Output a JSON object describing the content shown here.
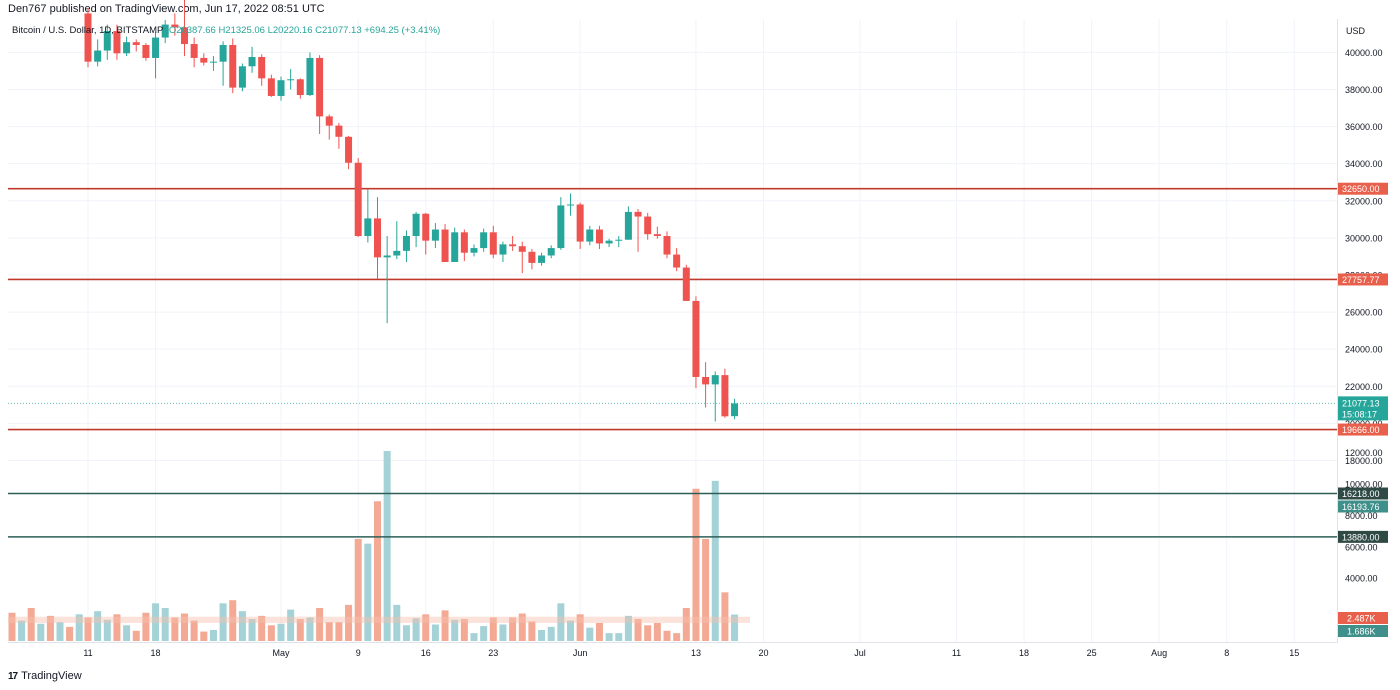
{
  "header": {
    "published_text": "Den767 published on TradingView.com, Jun 17, 2022 08:51 UTC"
  },
  "legend": {
    "symbol": "Bitcoin / U.S. Dollar, 1D, BITSTAMP",
    "ohlc": "O20387.66  H21325.06  L20220.16  C21077.13  +694.25 (+3.41%)"
  },
  "footer": {
    "logo_text": "17",
    "brand": "TradingView"
  },
  "colors": {
    "up": "#26a69a",
    "down": "#ef5350",
    "level_red": "#c0392b",
    "level_green": "#2e5e57",
    "grid": "#f0f3fa",
    "vol_up": "#9fd0d4",
    "vol_down": "#f2a48e"
  },
  "chart_data": {
    "type": "candlestick",
    "currency": "USD",
    "ylim": [
      17000,
      41800
    ],
    "y_ticks": [
      18000,
      20000,
      22000,
      24000,
      26000,
      28000,
      30000,
      32000,
      34000,
      36000,
      38000,
      40000
    ],
    "x_ticks": [
      "11",
      "18",
      "May",
      "9",
      "16",
      "23",
      "Jun",
      "13",
      "20",
      "Jul",
      "11",
      "18",
      "25",
      "Aug",
      "8",
      "15"
    ],
    "candles": [
      {
        "date": "2022-04-11",
        "o": 42100,
        "h": 42400,
        "l": 39200,
        "c": 39500
      },
      {
        "date": "2022-04-12",
        "o": 39500,
        "h": 40700,
        "l": 39250,
        "c": 40100
      },
      {
        "date": "2022-04-13",
        "o": 40100,
        "h": 41500,
        "l": 39600,
        "c": 41150
      },
      {
        "date": "2022-04-14",
        "o": 41150,
        "h": 41500,
        "l": 39600,
        "c": 39950
      },
      {
        "date": "2022-04-15",
        "o": 39950,
        "h": 40850,
        "l": 39800,
        "c": 40550
      },
      {
        "date": "2022-04-16",
        "o": 40550,
        "h": 40700,
        "l": 40050,
        "c": 40400
      },
      {
        "date": "2022-04-17",
        "o": 40400,
        "h": 40500,
        "l": 39550,
        "c": 39700
      },
      {
        "date": "2022-04-18",
        "o": 39700,
        "h": 41100,
        "l": 38600,
        "c": 40800
      },
      {
        "date": "2022-04-19",
        "o": 40800,
        "h": 41750,
        "l": 40500,
        "c": 41500
      },
      {
        "date": "2022-04-20",
        "o": 41500,
        "h": 42100,
        "l": 40900,
        "c": 41350
      },
      {
        "date": "2022-04-21",
        "o": 41350,
        "h": 42900,
        "l": 39800,
        "c": 40450
      },
      {
        "date": "2022-04-22",
        "o": 40450,
        "h": 40800,
        "l": 39200,
        "c": 39700
      },
      {
        "date": "2022-04-23",
        "o": 39700,
        "h": 39950,
        "l": 39300,
        "c": 39450
      },
      {
        "date": "2022-04-24",
        "o": 39450,
        "h": 39800,
        "l": 39000,
        "c": 39500
      },
      {
        "date": "2022-04-25",
        "o": 39500,
        "h": 40600,
        "l": 38200,
        "c": 40400
      },
      {
        "date": "2022-04-26",
        "o": 40400,
        "h": 40750,
        "l": 37800,
        "c": 38100
      },
      {
        "date": "2022-04-27",
        "o": 38100,
        "h": 39400,
        "l": 37900,
        "c": 39250
      },
      {
        "date": "2022-04-28",
        "o": 39250,
        "h": 40300,
        "l": 38900,
        "c": 39750
      },
      {
        "date": "2022-04-29",
        "o": 39750,
        "h": 39900,
        "l": 38200,
        "c": 38600
      },
      {
        "date": "2022-04-30",
        "o": 38600,
        "h": 38800,
        "l": 37600,
        "c": 37650
      },
      {
        "date": "2022-05-01",
        "o": 37650,
        "h": 38700,
        "l": 37400,
        "c": 38500
      },
      {
        "date": "2022-05-02",
        "o": 38500,
        "h": 39100,
        "l": 38000,
        "c": 38550
      },
      {
        "date": "2022-05-03",
        "o": 38550,
        "h": 38600,
        "l": 37500,
        "c": 37700
      },
      {
        "date": "2022-05-04",
        "o": 37700,
        "h": 40000,
        "l": 37650,
        "c": 39700
      },
      {
        "date": "2022-05-05",
        "o": 39700,
        "h": 39850,
        "l": 35600,
        "c": 36550
      },
      {
        "date": "2022-05-06",
        "o": 36550,
        "h": 36650,
        "l": 35300,
        "c": 36050
      },
      {
        "date": "2022-05-07",
        "o": 36050,
        "h": 36200,
        "l": 34800,
        "c": 35450
      },
      {
        "date": "2022-05-08",
        "o": 35450,
        "h": 35500,
        "l": 33700,
        "c": 34050
      },
      {
        "date": "2022-05-09",
        "o": 34050,
        "h": 34300,
        "l": 30050,
        "c": 30100
      },
      {
        "date": "2022-05-10",
        "o": 30100,
        "h": 32600,
        "l": 29750,
        "c": 31050
      },
      {
        "date": "2022-05-11",
        "o": 31050,
        "h": 32200,
        "l": 27800,
        "c": 28950
      },
      {
        "date": "2022-05-12",
        "o": 28950,
        "h": 30100,
        "l": 25400,
        "c": 29050
      },
      {
        "date": "2022-05-13",
        "o": 29050,
        "h": 30900,
        "l": 28850,
        "c": 29300
      },
      {
        "date": "2022-05-14",
        "o": 29300,
        "h": 30400,
        "l": 28700,
        "c": 30100
      },
      {
        "date": "2022-05-15",
        "o": 30100,
        "h": 31400,
        "l": 29500,
        "c": 31300
      },
      {
        "date": "2022-05-16",
        "o": 31300,
        "h": 31350,
        "l": 29100,
        "c": 29850
      },
      {
        "date": "2022-05-17",
        "o": 29850,
        "h": 30800,
        "l": 29450,
        "c": 30450
      },
      {
        "date": "2022-05-18",
        "o": 30450,
        "h": 30750,
        "l": 28700,
        "c": 28700
      },
      {
        "date": "2022-05-19",
        "o": 28700,
        "h": 30550,
        "l": 28700,
        "c": 30300
      },
      {
        "date": "2022-05-20",
        "o": 30300,
        "h": 30450,
        "l": 28750,
        "c": 29200
      },
      {
        "date": "2022-05-21",
        "o": 29200,
        "h": 29650,
        "l": 29000,
        "c": 29450
      },
      {
        "date": "2022-05-22",
        "o": 29450,
        "h": 30500,
        "l": 29250,
        "c": 30300
      },
      {
        "date": "2022-05-23",
        "o": 30300,
        "h": 30650,
        "l": 28900,
        "c": 29100
      },
      {
        "date": "2022-05-24",
        "o": 29100,
        "h": 29800,
        "l": 28700,
        "c": 29650
      },
      {
        "date": "2022-05-25",
        "o": 29650,
        "h": 30100,
        "l": 29300,
        "c": 29550
      },
      {
        "date": "2022-05-26",
        "o": 29550,
        "h": 29800,
        "l": 28100,
        "c": 29250
      },
      {
        "date": "2022-05-27",
        "o": 29250,
        "h": 29400,
        "l": 28300,
        "c": 28650
      },
      {
        "date": "2022-05-28",
        "o": 28650,
        "h": 29200,
        "l": 28500,
        "c": 29050
      },
      {
        "date": "2022-05-29",
        "o": 29050,
        "h": 29600,
        "l": 28900,
        "c": 29450
      },
      {
        "date": "2022-05-30",
        "o": 29450,
        "h": 32200,
        "l": 29350,
        "c": 31750
      },
      {
        "date": "2022-05-31",
        "o": 31750,
        "h": 32400,
        "l": 31200,
        "c": 31800
      },
      {
        "date": "2022-06-01",
        "o": 31800,
        "h": 31900,
        "l": 29400,
        "c": 29800
      },
      {
        "date": "2022-06-02",
        "o": 29800,
        "h": 30650,
        "l": 29600,
        "c": 30450
      },
      {
        "date": "2022-06-03",
        "o": 30450,
        "h": 30650,
        "l": 29400,
        "c": 29700
      },
      {
        "date": "2022-06-04",
        "o": 29700,
        "h": 29950,
        "l": 29500,
        "c": 29850
      },
      {
        "date": "2022-06-05",
        "o": 29850,
        "h": 30100,
        "l": 29500,
        "c": 29900
      },
      {
        "date": "2022-06-06",
        "o": 29900,
        "h": 31700,
        "l": 29900,
        "c": 31400
      },
      {
        "date": "2022-06-07",
        "o": 31400,
        "h": 31550,
        "l": 29250,
        "c": 31150
      },
      {
        "date": "2022-06-08",
        "o": 31150,
        "h": 31350,
        "l": 29900,
        "c": 30200
      },
      {
        "date": "2022-06-09",
        "o": 30200,
        "h": 30600,
        "l": 29950,
        "c": 30100
      },
      {
        "date": "2022-06-10",
        "o": 30100,
        "h": 30350,
        "l": 28900,
        "c": 29100
      },
      {
        "date": "2022-06-11",
        "o": 29100,
        "h": 29450,
        "l": 28200,
        "c": 28400
      },
      {
        "date": "2022-06-12",
        "o": 28400,
        "h": 28550,
        "l": 26600,
        "c": 26600
      },
      {
        "date": "2022-06-13",
        "o": 26600,
        "h": 26850,
        "l": 21900,
        "c": 22500
      },
      {
        "date": "2022-06-14",
        "o": 22500,
        "h": 23300,
        "l": 20850,
        "c": 22100
      },
      {
        "date": "2022-06-15",
        "o": 22100,
        "h": 22800,
        "l": 20100,
        "c": 22600
      },
      {
        "date": "2022-06-16",
        "o": 22600,
        "h": 22950,
        "l": 20300,
        "c": 20380
      },
      {
        "date": "2022-06-17",
        "o": 20387.66,
        "h": 21325.06,
        "l": 20220.16,
        "c": 21077.13
      }
    ],
    "volume": {
      "ylim": [
        0,
        13400
      ],
      "y_ticks": [
        2000,
        4000,
        6000,
        8000,
        10000,
        12000
      ],
      "values": [
        1500,
        1900,
        1350,
        1700,
        1000,
        650,
        1800,
        2400,
        2100,
        1500,
        1750,
        1300,
        600,
        700,
        2400,
        2600,
        1900,
        1400,
        1600,
        1000,
        1100,
        2000,
        1400,
        1500,
        2100,
        1200,
        1200,
        2300,
        6500,
        6200,
        8900,
        12100,
        2300,
        1000,
        1450,
        1700,
        1050,
        1950,
        1350,
        1400,
        500,
        950,
        1500,
        1050,
        1500,
        1750,
        1250,
        700,
        900,
        2400,
        1300,
        1700,
        850,
        1150,
        500,
        500,
        1600,
        1400,
        1000,
        1150,
        650,
        500,
        2100,
        9700,
        6500,
        10200,
        3100,
        1686
      ]
    },
    "levels": [
      {
        "value": 32650.0,
        "label": "32650.00",
        "style": "red"
      },
      {
        "value": 27757.77,
        "label": "27757.77",
        "style": "red"
      },
      {
        "value": 19666.0,
        "label": "19666.00",
        "style": "red"
      },
      {
        "value": 16218.0,
        "label": "16218.00",
        "style": "green"
      },
      {
        "value": 13880.0,
        "label": "13880.00",
        "style": "green"
      }
    ],
    "last_price": {
      "value": 21077.13,
      "label": "21077.13",
      "countdown": "15:08:17"
    },
    "extra_labels": {
      "price_16193": "16193.76",
      "vol_red": "2.487K",
      "vol_teal": "1.686K"
    }
  }
}
